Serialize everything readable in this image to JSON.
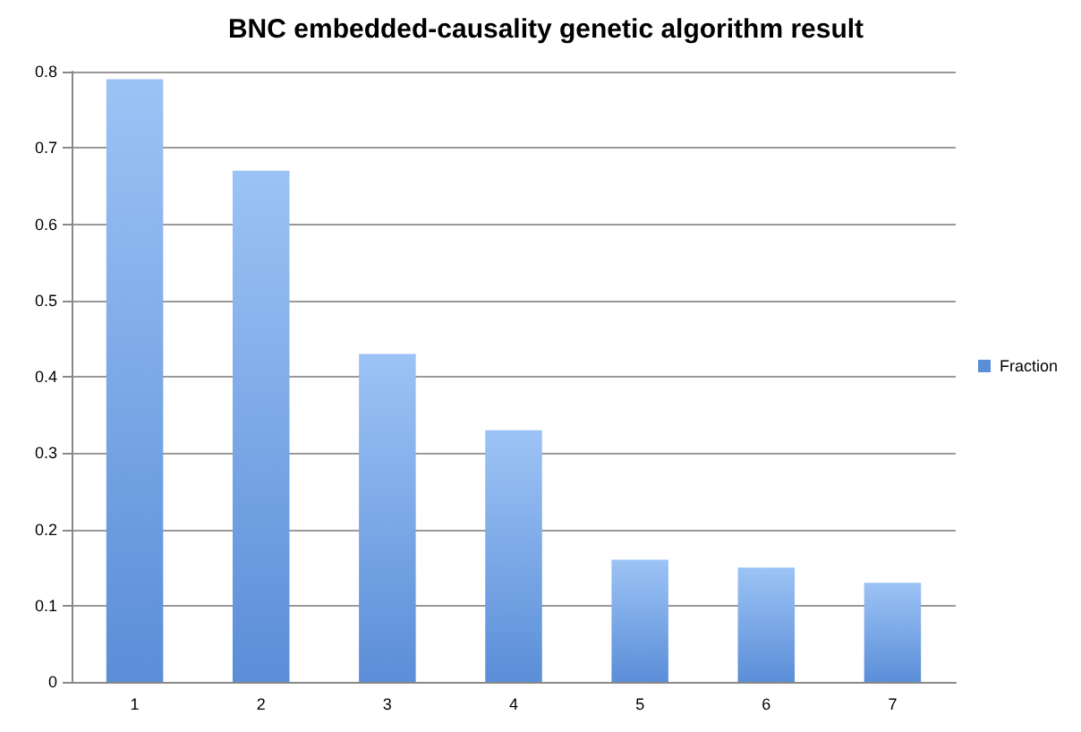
{
  "chart_data": {
    "type": "bar",
    "title": "BNC embedded-causality genetic algorithm result",
    "categories": [
      "1",
      "2",
      "3",
      "4",
      "5",
      "6",
      "7"
    ],
    "series": [
      {
        "name": "Fraction",
        "color": "#5b8ed8",
        "values": [
          0.79,
          0.67,
          0.43,
          0.33,
          0.16,
          0.15,
          0.13
        ]
      }
    ],
    "ylim": [
      0,
      0.8
    ],
    "yticks": [
      0,
      0.1,
      0.2,
      0.3,
      0.4,
      0.5,
      0.6,
      0.7,
      0.8
    ],
    "grid": "y",
    "legend": "right"
  }
}
